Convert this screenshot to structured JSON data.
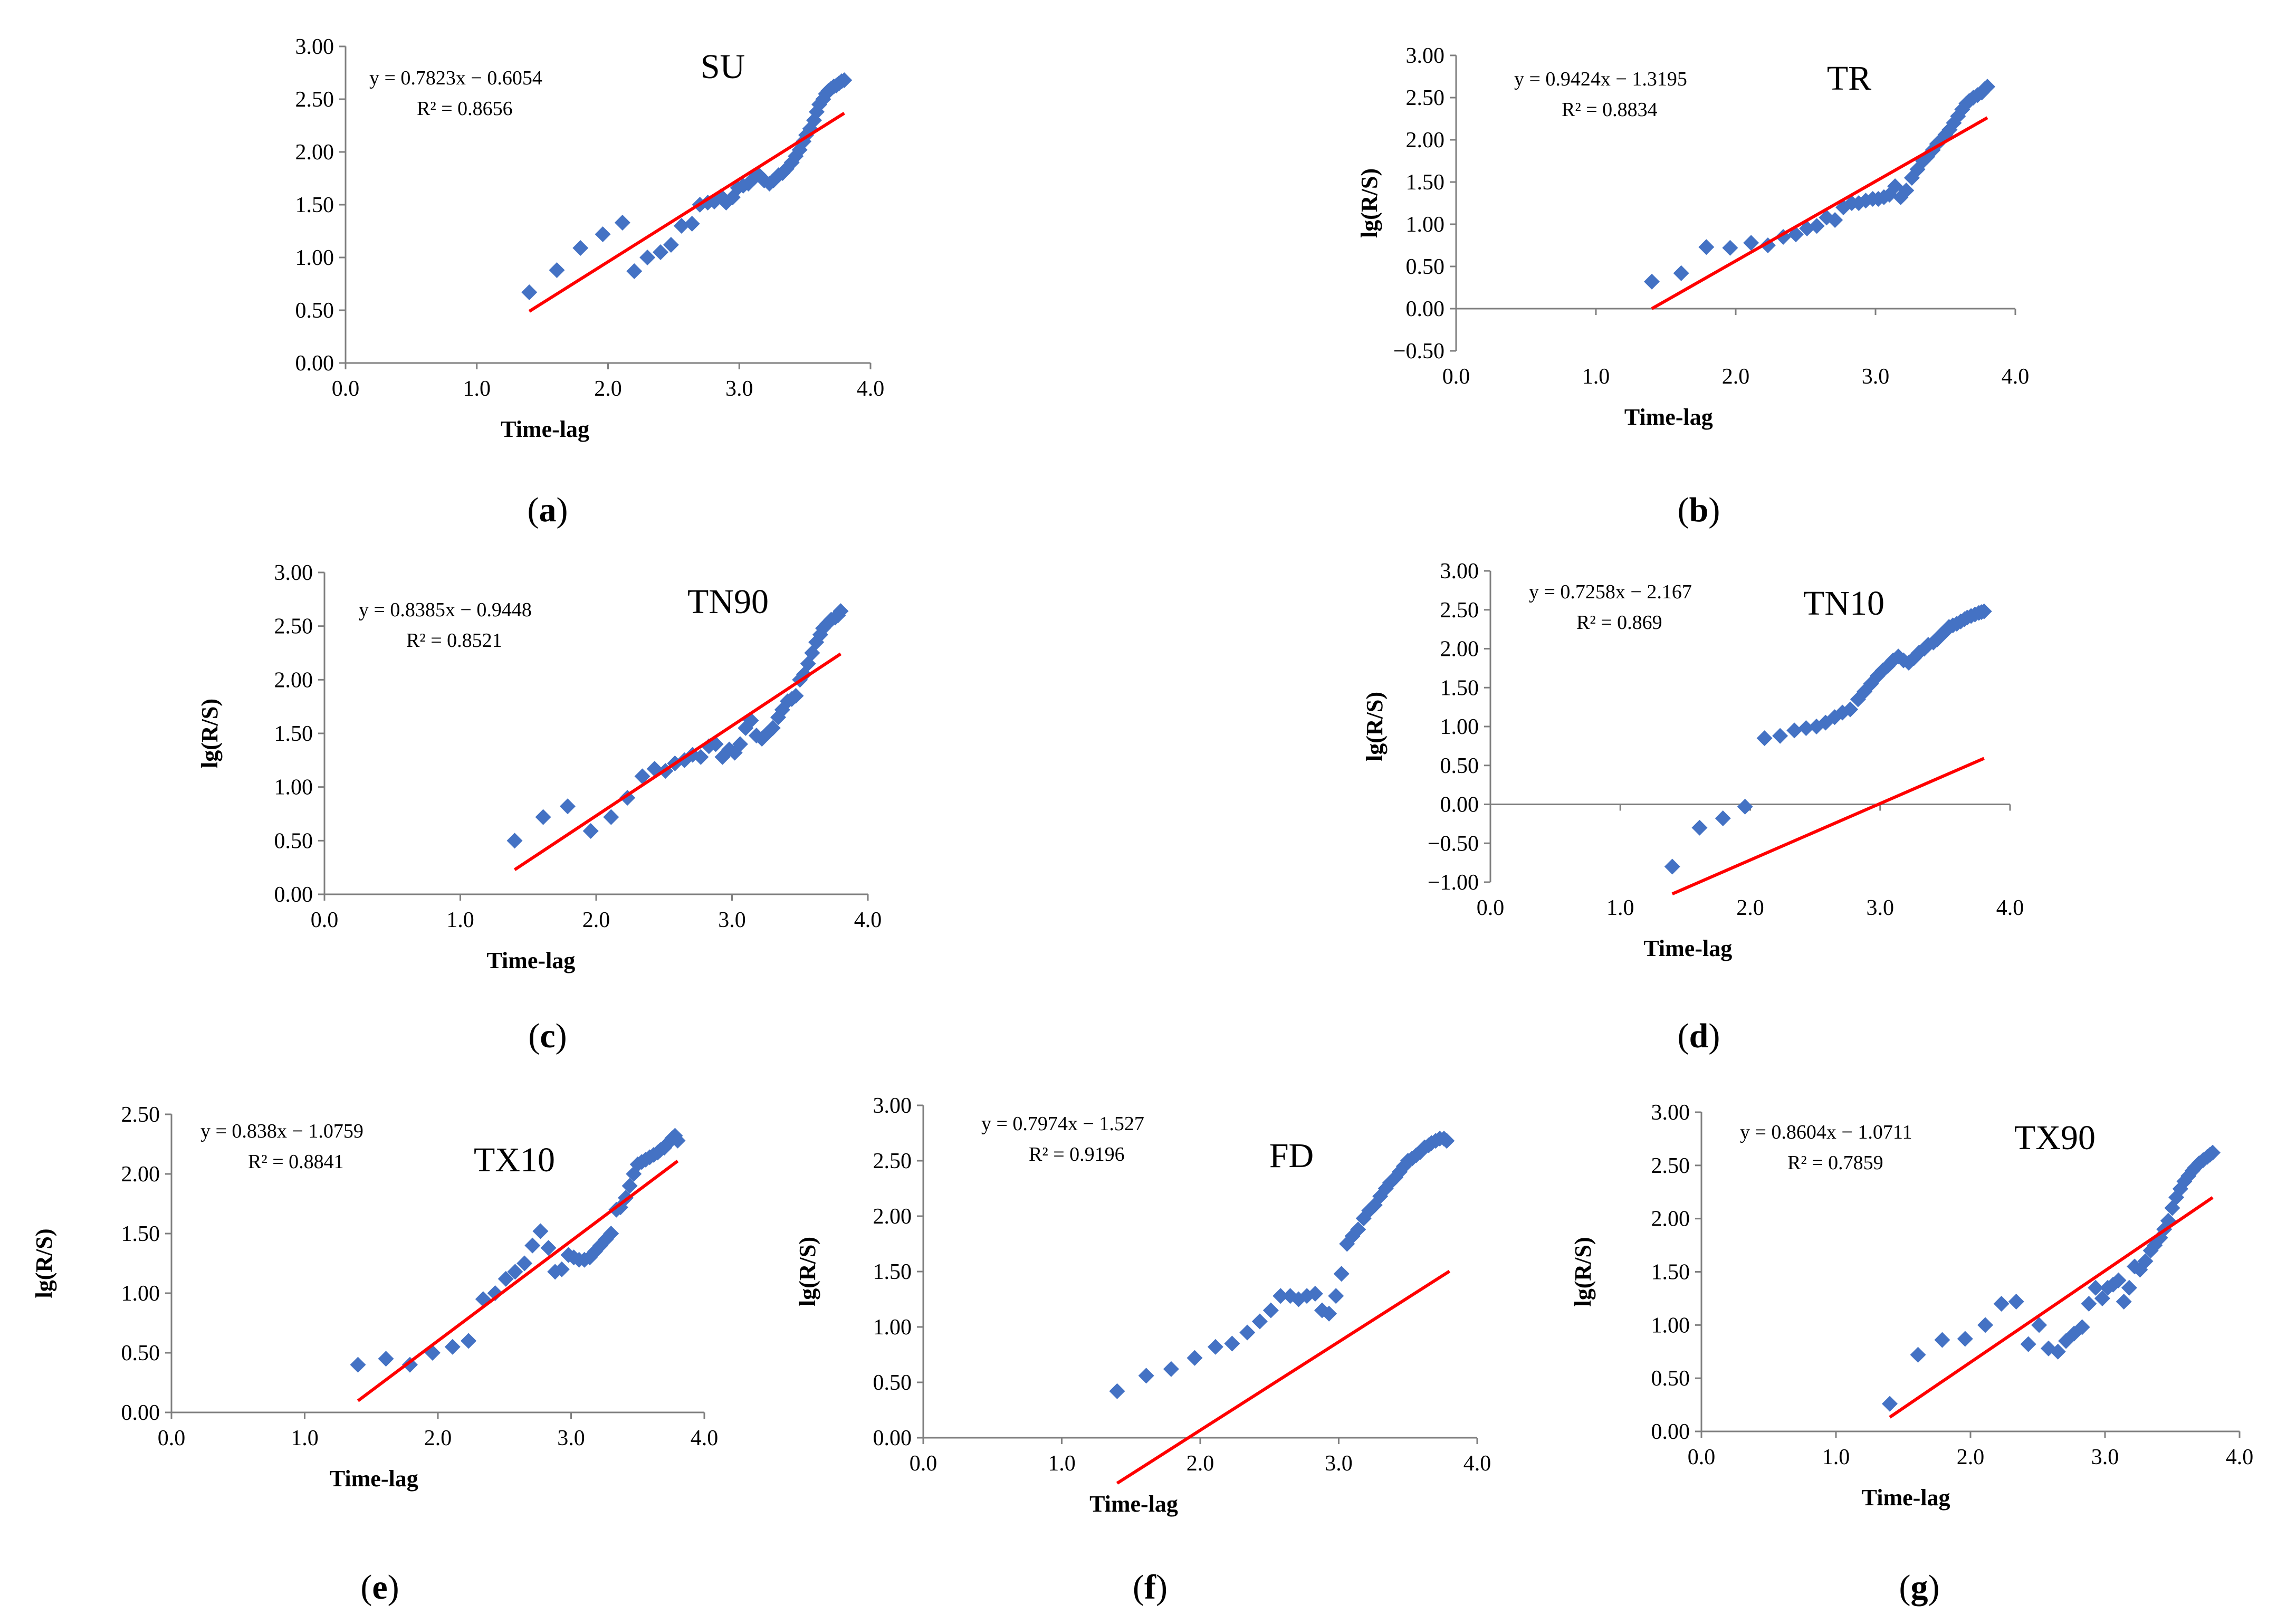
{
  "colors": {
    "marker": "#4472c4",
    "fit_line": "#ff0000",
    "axis": "#7f7f7f",
    "text": "#000000"
  },
  "chart_data": [
    {
      "type": "scatter",
      "panel": "a",
      "caption": "(a)",
      "title": "SU",
      "xlabel": "Time-lag",
      "ylabel": "",
      "xlim": [
        0,
        4
      ],
      "ylim": [
        0,
        3
      ],
      "xticks": [
        "0.0",
        "1.0",
        "2.0",
        "3.0",
        "4.0"
      ],
      "yticks": [
        "0.00",
        "0.50",
        "1.00",
        "1.50",
        "2.00",
        "2.50",
        "3.00"
      ],
      "equation": "y = 0.7823x − 0.6054",
      "r2": "R² = 0.8656",
      "trend": {
        "slope": 0.7823,
        "intercept": -0.6054,
        "x_range": [
          1.4,
          3.8
        ]
      },
      "series": [
        {
          "type": "scatter",
          "x": [
            1.4,
            1.61,
            1.79,
            1.96,
            2.11,
            2.2,
            2.3,
            2.4,
            2.48,
            2.56,
            2.64,
            2.7,
            2.76,
            2.81,
            2.86,
            2.9,
            2.95,
            2.99,
            3.03,
            3.07,
            3.11,
            3.15,
            3.19,
            3.23,
            3.26,
            3.3,
            3.33,
            3.36,
            3.4,
            3.43,
            3.46,
            3.49,
            3.51,
            3.54,
            3.57,
            3.59,
            3.61,
            3.64,
            3.66,
            3.68,
            3.7,
            3.72,
            3.74,
            3.76,
            3.78,
            3.8
          ],
          "y": [
            0.67,
            0.88,
            1.09,
            1.22,
            1.33,
            0.87,
            1.0,
            1.05,
            1.12,
            1.3,
            1.32,
            1.5,
            1.52,
            1.53,
            1.58,
            1.52,
            1.57,
            1.66,
            1.68,
            1.7,
            1.75,
            1.78,
            1.73,
            1.7,
            1.73,
            1.78,
            1.8,
            1.84,
            1.9,
            1.96,
            2.02,
            2.1,
            2.16,
            2.22,
            2.3,
            2.38,
            2.45,
            2.5,
            2.55,
            2.58,
            2.6,
            2.62,
            2.63,
            2.65,
            2.67,
            2.68
          ]
        }
      ]
    },
    {
      "type": "scatter",
      "panel": "b",
      "caption": "(b)",
      "title": "TR",
      "xlabel": "Time-lag",
      "ylabel": "lg(R/S)",
      "xlim": [
        0,
        4
      ],
      "ylim": [
        -0.5,
        3
      ],
      "xticks": [
        "0.0",
        "1.0",
        "2.0",
        "3.0",
        "4.0"
      ],
      "yticks": [
        "−0.50",
        "0.00",
        "0.50",
        "1.00",
        "1.50",
        "2.00",
        "2.50",
        "3.00"
      ],
      "equation": "y = 0.9424x − 1.3195",
      "r2": "R² = 0.8834",
      "trend": {
        "slope": 0.9424,
        "intercept": -1.3195,
        "x_range": [
          1.4,
          3.8
        ]
      },
      "series": [
        {
          "type": "scatter",
          "x": [
            1.4,
            1.61,
            1.79,
            1.96,
            2.11,
            2.23,
            2.34,
            2.43,
            2.51,
            2.58,
            2.65,
            2.71,
            2.77,
            2.83,
            2.88,
            2.93,
            2.98,
            3.02,
            3.06,
            3.1,
            3.14,
            3.18,
            3.22,
            3.26,
            3.3,
            3.34,
            3.37,
            3.41,
            3.44,
            3.47,
            3.5,
            3.53,
            3.56,
            3.59,
            3.62,
            3.65,
            3.67,
            3.7,
            3.73,
            3.76,
            3.78,
            3.8
          ],
          "y": [
            0.32,
            0.42,
            0.73,
            0.72,
            0.78,
            0.75,
            0.85,
            0.88,
            0.95,
            0.98,
            1.08,
            1.05,
            1.2,
            1.25,
            1.25,
            1.28,
            1.3,
            1.3,
            1.32,
            1.35,
            1.45,
            1.32,
            1.4,
            1.55,
            1.65,
            1.75,
            1.8,
            1.88,
            1.95,
            2.0,
            2.06,
            2.12,
            2.2,
            2.28,
            2.36,
            2.43,
            2.46,
            2.5,
            2.53,
            2.56,
            2.6,
            2.63
          ]
        }
      ]
    },
    {
      "type": "scatter",
      "panel": "c",
      "caption": "(c)",
      "title": "TN90",
      "xlabel": "Time-lag",
      "ylabel": "lg(R/S)",
      "xlim": [
        0,
        4
      ],
      "ylim": [
        0,
        3
      ],
      "xticks": [
        "0.0",
        "1.0",
        "2.0",
        "3.0",
        "4.0"
      ],
      "yticks": [
        "0.00",
        "0.50",
        "1.00",
        "1.50",
        "2.00",
        "2.50",
        "3.00"
      ],
      "equation": "y = 0.8385x − 0.9448",
      "r2": "R² = 0.8521",
      "trend": {
        "slope": 0.8385,
        "intercept": -0.9448,
        "x_range": [
          1.4,
          3.8
        ]
      },
      "series": [
        {
          "type": "scatter",
          "x": [
            1.4,
            1.61,
            1.79,
            1.96,
            2.11,
            2.23,
            2.34,
            2.43,
            2.51,
            2.58,
            2.65,
            2.71,
            2.77,
            2.83,
            2.88,
            2.93,
            2.98,
            3.02,
            3.06,
            3.1,
            3.14,
            3.18,
            3.22,
            3.26,
            3.3,
            3.34,
            3.37,
            3.41,
            3.44,
            3.47,
            3.5,
            3.53,
            3.56,
            3.59,
            3.62,
            3.65,
            3.67,
            3.7,
            3.73,
            3.76,
            3.78,
            3.8
          ],
          "y": [
            0.5,
            0.72,
            0.82,
            0.59,
            0.72,
            0.9,
            1.1,
            1.17,
            1.15,
            1.22,
            1.25,
            1.3,
            1.28,
            1.38,
            1.4,
            1.28,
            1.35,
            1.32,
            1.4,
            1.55,
            1.62,
            1.48,
            1.45,
            1.5,
            1.55,
            1.65,
            1.72,
            1.8,
            1.82,
            1.85,
            2.0,
            2.05,
            2.15,
            2.25,
            2.35,
            2.42,
            2.48,
            2.52,
            2.56,
            2.58,
            2.6,
            2.64
          ]
        }
      ]
    },
    {
      "type": "scatter",
      "panel": "d",
      "caption": "(d)",
      "title": "TN10",
      "xlabel": "Time-lag",
      "ylabel": "lg(R/S)",
      "xlim": [
        0,
        4
      ],
      "ylim": [
        -1,
        3
      ],
      "xticks": [
        "0.0",
        "1.0",
        "2.0",
        "3.0",
        "4.0"
      ],
      "yticks": [
        "−1.00",
        "−0.50",
        "0.00",
        "0.50",
        "1.00",
        "1.50",
        "2.00",
        "2.50",
        "3.00"
      ],
      "equation": "y = 0.7258x − 2.167",
      "r2": "R² = 0.869",
      "trend": {
        "slope": 0.7258,
        "intercept": -2.167,
        "x_range": [
          1.4,
          3.8
        ]
      },
      "series": [
        {
          "type": "scatter",
          "x": [
            1.4,
            1.61,
            1.79,
            1.96,
            2.11,
            2.23,
            2.34,
            2.43,
            2.51,
            2.58,
            2.65,
            2.71,
            2.77,
            2.83,
            2.88,
            2.93,
            2.98,
            3.02,
            3.06,
            3.1,
            3.14,
            3.18,
            3.22,
            3.26,
            3.3,
            3.34,
            3.37,
            3.41,
            3.44,
            3.47,
            3.5,
            3.53,
            3.56,
            3.59,
            3.62,
            3.65,
            3.67,
            3.7,
            3.73,
            3.76,
            3.78,
            3.8
          ],
          "y": [
            -0.8,
            -0.3,
            -0.18,
            -0.03,
            0.85,
            0.88,
            0.95,
            0.98,
            1.0,
            1.05,
            1.12,
            1.18,
            1.22,
            1.35,
            1.45,
            1.55,
            1.65,
            1.72,
            1.78,
            1.85,
            1.9,
            1.85,
            1.82,
            1.88,
            1.95,
            2.0,
            2.05,
            2.08,
            2.12,
            2.18,
            2.22,
            2.28,
            2.3,
            2.32,
            2.35,
            2.38,
            2.4,
            2.42,
            2.44,
            2.46,
            2.47,
            2.48
          ]
        }
      ]
    },
    {
      "type": "scatter",
      "panel": "e",
      "caption": "(e)",
      "title": "TX10",
      "xlabel": "Time-lag",
      "ylabel": "lg(R/S)",
      "xlim": [
        0,
        4
      ],
      "ylim": [
        0,
        2.5
      ],
      "xticks": [
        "0.0",
        "1.0",
        "2.0",
        "3.0",
        "4.0"
      ],
      "yticks": [
        "0.00",
        "0.50",
        "1.00",
        "1.50",
        "2.00",
        "2.50"
      ],
      "equation": "y = 0.838x − 1.0759",
      "r2": "R² = 0.8841",
      "trend": {
        "slope": 0.838,
        "intercept": -1.0759,
        "x_range": [
          1.4,
          3.8
        ]
      },
      "series": [
        {
          "type": "scatter",
          "x": [
            1.4,
            1.61,
            1.79,
            1.96,
            2.11,
            2.23,
            2.34,
            2.43,
            2.51,
            2.58,
            2.65,
            2.71,
            2.77,
            2.83,
            2.88,
            2.93,
            2.98,
            3.02,
            3.06,
            3.1,
            3.14,
            3.18,
            3.22,
            3.26,
            3.3,
            3.34,
            3.37,
            3.41,
            3.44,
            3.47,
            3.5,
            3.53,
            3.56,
            3.59,
            3.62,
            3.65,
            3.67,
            3.7,
            3.73,
            3.76,
            3.78,
            3.8
          ],
          "y": [
            0.4,
            0.45,
            0.4,
            0.5,
            0.55,
            0.6,
            0.95,
            1.0,
            1.12,
            1.18,
            1.25,
            1.4,
            1.52,
            1.38,
            1.18,
            1.2,
            1.32,
            1.3,
            1.28,
            1.28,
            1.3,
            1.35,
            1.4,
            1.45,
            1.5,
            1.7,
            1.72,
            1.8,
            1.9,
            2.0,
            2.08,
            2.1,
            2.12,
            2.14,
            2.16,
            2.18,
            2.2,
            2.22,
            2.26,
            2.3,
            2.32,
            2.28
          ]
        }
      ]
    },
    {
      "type": "scatter",
      "panel": "f",
      "caption": "(f)",
      "title": "FD",
      "xlabel": "Time-lag",
      "ylabel": "lg(R/S)",
      "xlim": [
        0,
        4
      ],
      "ylim": [
        0,
        3
      ],
      "xticks": [
        "0.0",
        "1.0",
        "2.0",
        "3.0",
        "4.0"
      ],
      "yticks": [
        "0.00",
        "0.50",
        "1.00",
        "1.50",
        "2.00",
        "2.50",
        "3.00"
      ],
      "equation": "y = 0.7974x − 1.527",
      "r2": "R² = 0.9196",
      "trend": {
        "slope": 0.7974,
        "intercept": -1.527,
        "x_range": [
          1.4,
          3.8
        ]
      },
      "series": [
        {
          "type": "scatter",
          "x": [
            1.4,
            1.61,
            1.79,
            1.96,
            2.11,
            2.23,
            2.34,
            2.43,
            2.51,
            2.58,
            2.65,
            2.71,
            2.77,
            2.83,
            2.88,
            2.93,
            2.98,
            3.02,
            3.06,
            3.1,
            3.14,
            3.18,
            3.22,
            3.26,
            3.3,
            3.34,
            3.37,
            3.41,
            3.44,
            3.47,
            3.5,
            3.53,
            3.56,
            3.59,
            3.62,
            3.65,
            3.67,
            3.7,
            3.73,
            3.76,
            3.78
          ],
          "y": [
            0.42,
            0.56,
            0.62,
            0.72,
            0.82,
            0.85,
            0.95,
            1.05,
            1.15,
            1.28,
            1.28,
            1.25,
            1.28,
            1.3,
            1.15,
            1.12,
            1.28,
            1.48,
            1.75,
            1.82,
            1.88,
            1.98,
            2.05,
            2.1,
            2.18,
            2.25,
            2.3,
            2.35,
            2.4,
            2.45,
            2.5,
            2.52,
            2.55,
            2.58,
            2.62,
            2.64,
            2.66,
            2.68,
            2.7,
            2.7,
            2.68
          ]
        }
      ]
    },
    {
      "type": "scatter",
      "panel": "g",
      "caption": "(g)",
      "title": "TX90",
      "xlabel": "Time-lag",
      "ylabel": "lg(R/S)",
      "xlim": [
        0,
        4
      ],
      "ylim": [
        0,
        3
      ],
      "xticks": [
        "0.0",
        "1.0",
        "2.0",
        "3.0",
        "4.0"
      ],
      "yticks": [
        "0.00",
        "0.50",
        "1.00",
        "1.50",
        "2.00",
        "2.50",
        "3.00"
      ],
      "equation": "y = 0.8604x − 1.0711",
      "r2": "R² = 0.7859",
      "trend": {
        "slope": 0.8604,
        "intercept": -1.0711,
        "x_range": [
          1.4,
          3.8
        ]
      },
      "series": [
        {
          "type": "scatter",
          "x": [
            1.4,
            1.61,
            1.79,
            1.96,
            2.11,
            2.23,
            2.34,
            2.43,
            2.51,
            2.58,
            2.65,
            2.71,
            2.77,
            2.83,
            2.88,
            2.93,
            2.98,
            3.02,
            3.06,
            3.1,
            3.14,
            3.18,
            3.22,
            3.26,
            3.3,
            3.34,
            3.37,
            3.41,
            3.44,
            3.47,
            3.5,
            3.53,
            3.56,
            3.59,
            3.62,
            3.65,
            3.67,
            3.7,
            3.73,
            3.76,
            3.78,
            3.8
          ],
          "y": [
            0.26,
            0.72,
            0.86,
            0.87,
            1.0,
            1.2,
            1.22,
            0.82,
            1.0,
            0.78,
            0.75,
            0.85,
            0.92,
            0.98,
            1.2,
            1.35,
            1.25,
            1.35,
            1.38,
            1.42,
            1.22,
            1.35,
            1.55,
            1.52,
            1.6,
            1.7,
            1.75,
            1.82,
            1.9,
            1.98,
            2.1,
            2.2,
            2.28,
            2.35,
            2.4,
            2.45,
            2.48,
            2.52,
            2.55,
            2.58,
            2.6,
            2.62
          ]
        }
      ]
    }
  ]
}
